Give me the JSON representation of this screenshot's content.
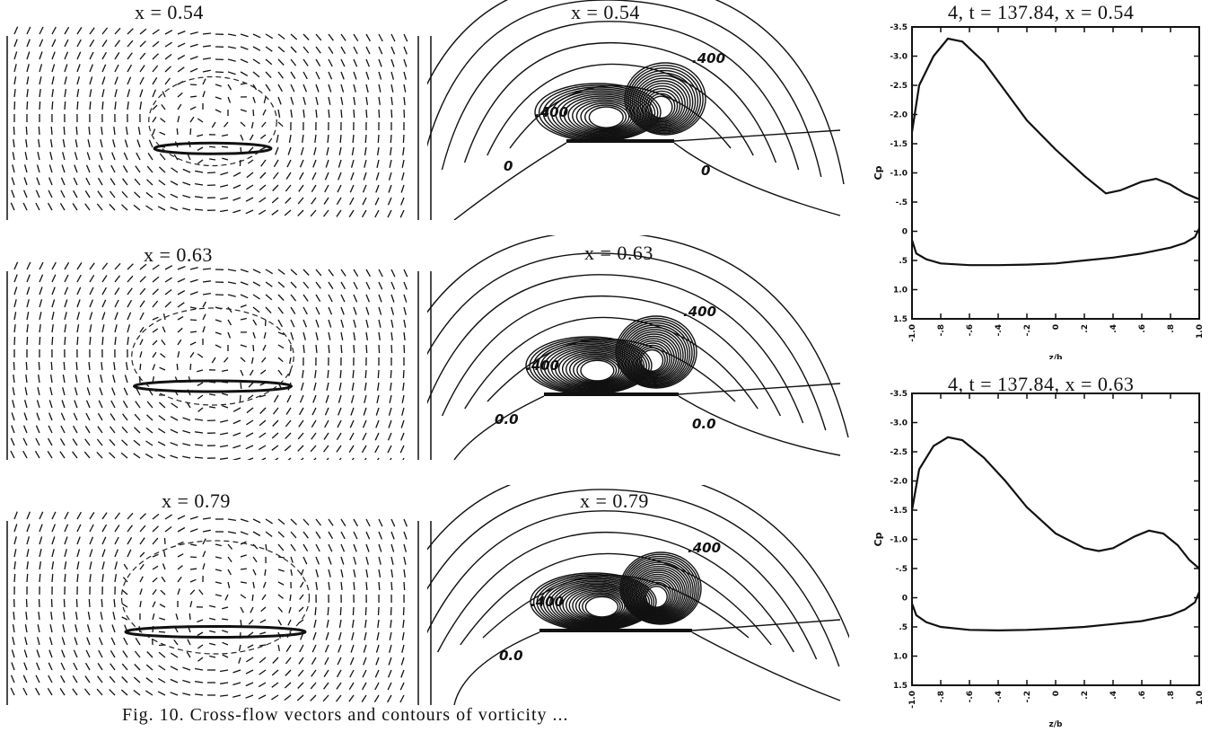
{
  "figure": {
    "caption": "Fig. 10. Cross-flow vectors and contours of vorticity ..."
  },
  "vector_panels": [
    {
      "title": "x = 0.54"
    },
    {
      "title": "x = 0.63"
    },
    {
      "title": "x = 0.79"
    }
  ],
  "contour_panels": [
    {
      "title": "x = 0.54",
      "labels": [
        ".400",
        ".400",
        "0",
        "0"
      ]
    },
    {
      "title": "x = 0.63",
      "labels": [
        ".400",
        ".400",
        "0.0",
        "0.0"
      ]
    },
    {
      "title": "x = 0.79",
      "labels": [
        ".400",
        ".400",
        "0.0"
      ]
    }
  ],
  "chart_data": [
    {
      "type": "line",
      "title": "4, t = 137.84, x = 0.54",
      "xlabel": "z/b",
      "ylabel": "Cp",
      "xlim": [
        -1.0,
        1.0
      ],
      "ylim": [
        -3.5,
        1.5
      ],
      "y_inverted": true,
      "x_ticks": [
        "-1.0",
        "-.8",
        "-.6",
        "-.4",
        "-.2",
        "0",
        ".2",
        ".4",
        ".6",
        ".8",
        "1.0"
      ],
      "y_ticks": [
        "-3.5",
        "-3.0",
        "-2.5",
        "-2.0",
        "-1.5",
        "-1.0",
        "-.5",
        "0",
        ".5",
        "1.0",
        "1.5"
      ],
      "series": [
        {
          "x": [
            -1.0,
            -0.95,
            -0.85,
            -0.75,
            -0.65,
            -0.5,
            -0.35,
            -0.2,
            0.0,
            0.2,
            0.35,
            0.45,
            0.6,
            0.7,
            0.8,
            0.9,
            1.0
          ],
          "y": [
            -1.7,
            -2.5,
            -3.0,
            -3.3,
            -3.25,
            -2.9,
            -2.4,
            -1.9,
            -1.4,
            -0.95,
            -0.65,
            -0.7,
            -0.85,
            -0.9,
            -0.8,
            -0.65,
            -0.55
          ]
        },
        {
          "x": [
            -1.0,
            -0.97,
            -0.9,
            -0.8,
            -0.6,
            -0.4,
            -0.2,
            0.0,
            0.2,
            0.4,
            0.6,
            0.8,
            0.9,
            0.97,
            1.0
          ],
          "y": [
            0.15,
            0.38,
            0.48,
            0.55,
            0.58,
            0.58,
            0.57,
            0.55,
            0.5,
            0.45,
            0.38,
            0.28,
            0.2,
            0.1,
            -0.05
          ]
        }
      ]
    },
    {
      "type": "line",
      "title": "4, t = 137.84, x = 0.63",
      "xlabel": "z/b",
      "ylabel": "Cp",
      "xlim": [
        -1.0,
        1.0
      ],
      "ylim": [
        -3.5,
        1.5
      ],
      "y_inverted": true,
      "x_ticks": [
        "-1.0",
        "-.8",
        "-.6",
        "-.4",
        "-.2",
        "0",
        ".2",
        ".4",
        ".6",
        ".8",
        "1.0"
      ],
      "y_ticks": [
        "-3.5",
        "-3.0",
        "-2.5",
        "-2.0",
        "-1.5",
        "-1.0",
        "-.5",
        "0",
        ".5",
        "1.0",
        "1.5"
      ],
      "series": [
        {
          "x": [
            -1.0,
            -0.95,
            -0.85,
            -0.75,
            -0.65,
            -0.5,
            -0.35,
            -0.2,
            0.0,
            0.2,
            0.3,
            0.4,
            0.55,
            0.65,
            0.75,
            0.85,
            0.93,
            1.0
          ],
          "y": [
            -1.5,
            -2.2,
            -2.6,
            -2.75,
            -2.7,
            -2.4,
            -2.0,
            -1.55,
            -1.1,
            -0.85,
            -0.8,
            -0.85,
            -1.05,
            -1.15,
            -1.1,
            -0.9,
            -0.65,
            -0.5
          ]
        },
        {
          "x": [
            -1.0,
            -0.97,
            -0.9,
            -0.8,
            -0.6,
            -0.4,
            -0.2,
            0.0,
            0.2,
            0.4,
            0.6,
            0.8,
            0.9,
            0.97,
            1.0
          ],
          "y": [
            0.1,
            0.3,
            0.42,
            0.5,
            0.55,
            0.56,
            0.55,
            0.53,
            0.5,
            0.45,
            0.4,
            0.3,
            0.2,
            0.08,
            -0.1
          ]
        }
      ]
    }
  ]
}
